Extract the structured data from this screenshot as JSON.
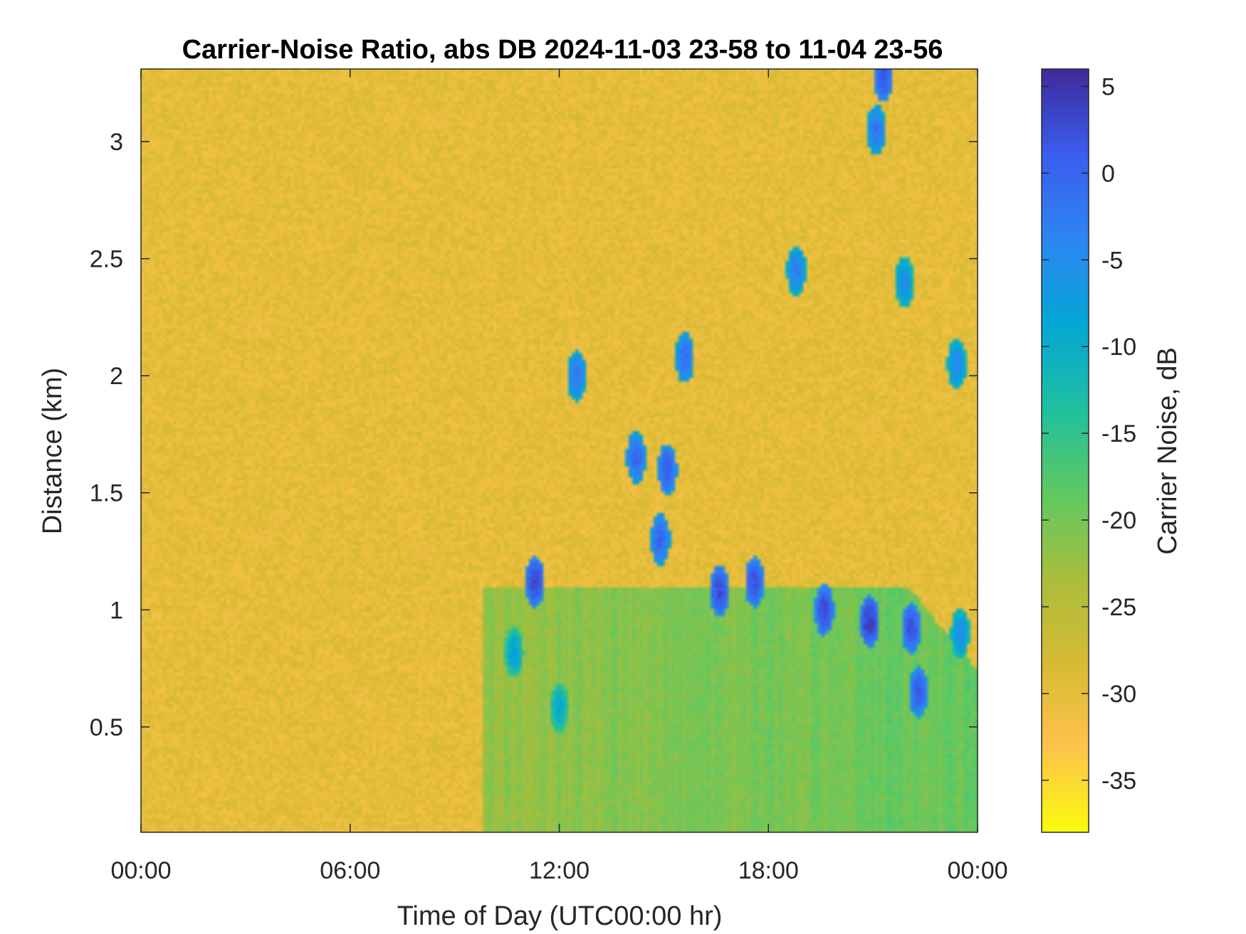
{
  "chart_data": {
    "type": "heatmap",
    "title": "Carrier-Noise Ratio, abs DB 2024-11-03 23-58 to 11-04 23-56",
    "xlabel": "Time of Day (UTC00:00 hr)",
    "ylabel": "Distance (km)",
    "x_ticks": [
      "00:00",
      "06:00",
      "12:00",
      "18:00",
      "00:00"
    ],
    "x_tick_hours": [
      0,
      6,
      12,
      18,
      24
    ],
    "xlim_hours": [
      0,
      24
    ],
    "y_ticks": [
      0.5,
      1,
      1.5,
      2,
      2.5,
      3
    ],
    "y_tick_labels": [
      "0.5",
      "1",
      "1.5",
      "2",
      "2.5",
      "3"
    ],
    "ylim": [
      0.05,
      3.31
    ],
    "colorbar": {
      "label": "Carrier Noise, dB",
      "ticks": [
        5,
        0,
        -5,
        -10,
        -15,
        -20,
        -25,
        -30,
        -35
      ],
      "tick_labels": [
        "5",
        "0",
        "-5",
        "-10",
        "-15",
        "-20",
        "-25",
        "-30",
        "-35"
      ],
      "range": [
        -38,
        6
      ],
      "colormap": [
        "#f9fb0e",
        "#fec34b",
        "#d7ba33",
        "#a8be3c",
        "#5dc962",
        "#1fbfa0",
        "#04a6d5",
        "#2d85f3",
        "#3b5ced",
        "#3e2a9b"
      ]
    },
    "background_value_db": -30,
    "boundary_layer": {
      "start_hour": 9.8,
      "top_km": 1.1,
      "value_near_db": -22,
      "value_late_db": -19
    },
    "features": [
      {
        "hour": 10.7,
        "km": 0.82,
        "value_db": -8
      },
      {
        "hour": 12.0,
        "km": 0.58,
        "value_db": -9
      },
      {
        "hour": 11.3,
        "km": 1.12,
        "value_db": 3
      },
      {
        "hour": 12.5,
        "km": 2.0,
        "value_db": -2
      },
      {
        "hour": 14.2,
        "km": 1.65,
        "value_db": 0
      },
      {
        "hour": 15.1,
        "km": 1.6,
        "value_db": 1
      },
      {
        "hour": 14.9,
        "km": 1.3,
        "value_db": 0
      },
      {
        "hour": 15.6,
        "km": 2.08,
        "value_db": -1
      },
      {
        "hour": 16.6,
        "km": 1.08,
        "value_db": 3
      },
      {
        "hour": 17.6,
        "km": 1.12,
        "value_db": 2
      },
      {
        "hour": 19.6,
        "km": 1.0,
        "value_db": 3
      },
      {
        "hour": 20.9,
        "km": 0.95,
        "value_db": 4
      },
      {
        "hour": 22.1,
        "km": 0.92,
        "value_db": 2
      },
      {
        "hour": 18.8,
        "km": 2.45,
        "value_db": -3
      },
      {
        "hour": 21.9,
        "km": 2.4,
        "value_db": -5
      },
      {
        "hour": 21.1,
        "km": 3.05,
        "value_db": -2
      },
      {
        "hour": 21.3,
        "km": 3.28,
        "value_db": 2
      },
      {
        "hour": 23.4,
        "km": 2.05,
        "value_db": -4
      },
      {
        "hour": 22.3,
        "km": 0.65,
        "value_db": 1
      },
      {
        "hour": 23.5,
        "km": 0.9,
        "value_db": -5
      }
    ]
  }
}
